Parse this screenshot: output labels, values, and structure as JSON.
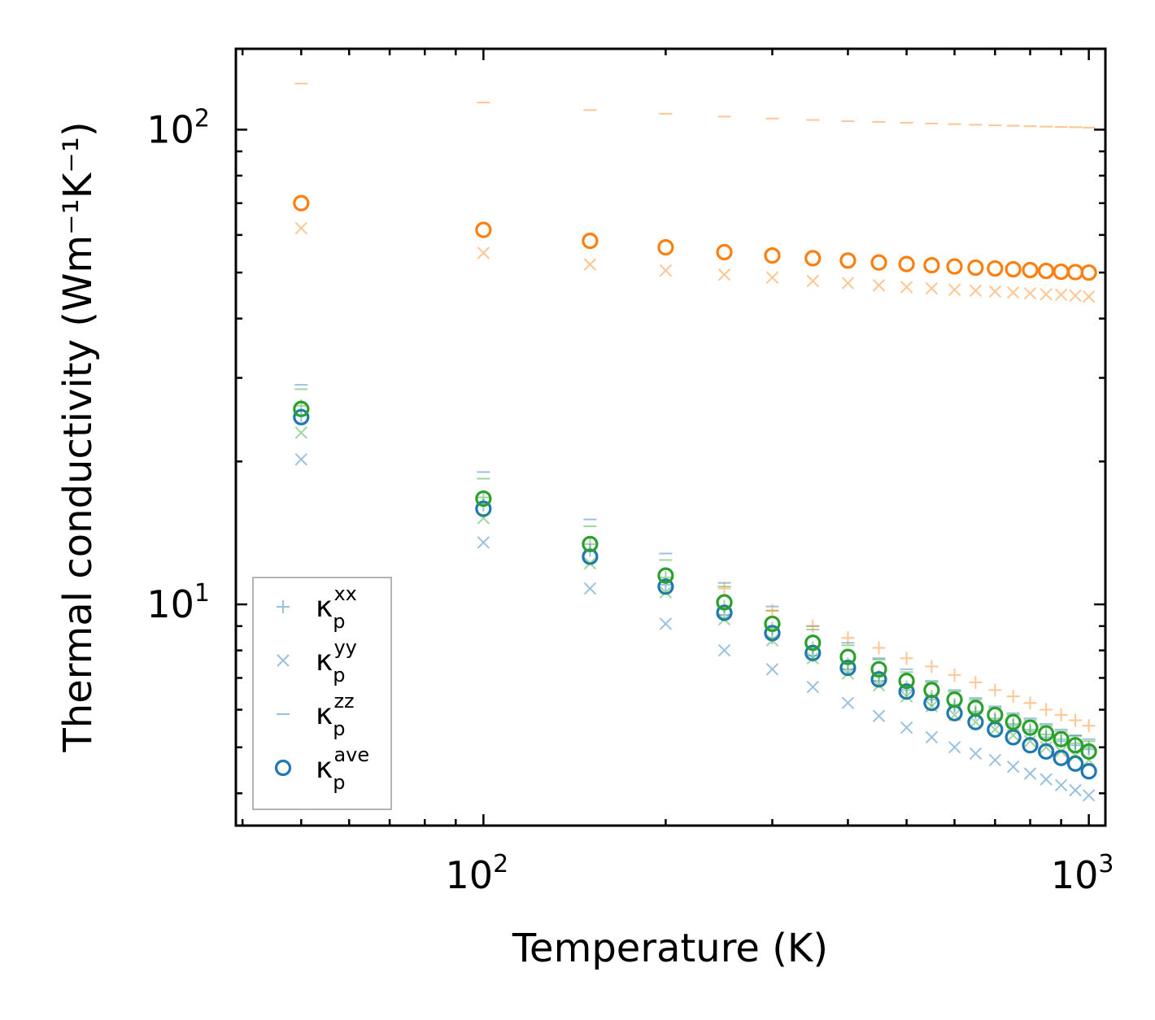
{
  "chart_data": {
    "type": "scatter",
    "title": "",
    "xlabel": "Temperature (K)",
    "ylabel": "Thermal conductivity (Wm⁻¹K⁻¹)",
    "xscale": "log",
    "yscale": "log",
    "xlim": [
      39,
      1065
    ],
    "ylim": [
      3.42,
      148
    ],
    "x_ticks": [
      {
        "value": 100,
        "base": "10",
        "exp": "2"
      },
      {
        "value": 1000,
        "base": "10",
        "exp": "3"
      }
    ],
    "y_ticks": [
      {
        "value": 10,
        "base": "10",
        "exp": "1"
      },
      {
        "value": 100,
        "base": "10",
        "exp": "2"
      }
    ],
    "grid": false,
    "legend_position": "lower-left",
    "colors": {
      "blue": "#1f77b4",
      "orange": "#ff7f0e",
      "green": "#2ca02c",
      "light_blue": "#1f77b4",
      "light_orange": "#ff7f0e",
      "light_green": "#2ca02c"
    },
    "x": [
      50,
      100,
      150,
      200,
      250,
      300,
      350,
      400,
      450,
      500,
      550,
      600,
      650,
      700,
      750,
      800,
      850,
      900,
      950,
      1000
    ],
    "series": [
      {
        "name": "blue kxx",
        "marker": "plus",
        "color": "#1f77b4",
        "alpha": 0.45,
        "values": [
          25.0,
          16.2,
          13.0,
          11.0,
          9.5,
          8.5,
          7.8,
          7.3,
          6.9,
          6.6,
          6.3,
          6.1,
          5.9,
          5.7,
          5.55,
          5.4,
          5.25,
          5.15,
          5.05,
          4.95
        ]
      },
      {
        "name": "blue kyy",
        "marker": "x",
        "color": "#1f77b4",
        "alpha": 0.45,
        "values": [
          20.2,
          13.5,
          10.8,
          9.1,
          8.0,
          7.3,
          6.7,
          6.2,
          5.82,
          5.5,
          5.25,
          5.0,
          4.85,
          4.7,
          4.55,
          4.4,
          4.28,
          4.16,
          4.06,
          3.96
        ]
      },
      {
        "name": "blue kzz",
        "marker": "dash",
        "color": "#1f77b4",
        "alpha": 0.45,
        "values": [
          29.0,
          19.0,
          15.1,
          12.8,
          11.1,
          9.9,
          9.0,
          8.3,
          7.7,
          7.3,
          6.9,
          6.6,
          6.35,
          6.1,
          5.9,
          5.75,
          5.6,
          5.45,
          5.3,
          5.2
        ]
      },
      {
        "name": "blue ave",
        "marker": "circle",
        "color": "#1f77b4",
        "alpha": 1.0,
        "values": [
          24.8,
          15.9,
          12.6,
          10.9,
          9.6,
          8.7,
          7.9,
          7.35,
          6.95,
          6.55,
          6.2,
          5.9,
          5.65,
          5.45,
          5.25,
          5.05,
          4.9,
          4.75,
          4.62,
          4.45
        ]
      },
      {
        "name": "green kxx",
        "marker": "plus",
        "color": "#2ca02c",
        "alpha": 0.45,
        "values": [
          26.2,
          16.8,
          13.4,
          11.4,
          9.9,
          8.9,
          8.1,
          7.5,
          7.05,
          6.7,
          6.4,
          6.15,
          5.95,
          5.75,
          5.6,
          5.45,
          5.32,
          5.2,
          5.1,
          5.0
        ]
      },
      {
        "name": "green kyy",
        "marker": "x",
        "color": "#2ca02c",
        "alpha": 0.45,
        "values": [
          23.0,
          15.2,
          12.2,
          10.6,
          9.3,
          8.4,
          7.7,
          7.15,
          6.75,
          6.4,
          6.1,
          5.85,
          5.65,
          5.45,
          5.3,
          5.15,
          5.0,
          4.9,
          4.8,
          4.7
        ]
      },
      {
        "name": "green kzz",
        "marker": "dash",
        "color": "#2ca02c",
        "alpha": 0.45,
        "values": [
          28.4,
          18.4,
          14.6,
          12.4,
          10.9,
          9.7,
          8.85,
          8.2,
          7.65,
          7.2,
          6.85,
          6.55,
          6.3,
          6.05,
          5.85,
          5.7,
          5.55,
          5.4,
          5.28,
          5.15
        ]
      },
      {
        "name": "green ave",
        "marker": "circle",
        "color": "#2ca02c",
        "alpha": 1.0,
        "values": [
          25.8,
          16.7,
          13.4,
          11.5,
          10.1,
          9.1,
          8.3,
          7.75,
          7.3,
          6.9,
          6.6,
          6.3,
          6.05,
          5.85,
          5.65,
          5.5,
          5.35,
          5.2,
          5.05,
          4.9
        ]
      },
      {
        "name": "orange kxx",
        "marker": "plus",
        "color": "#ff7f0e",
        "alpha": 0.45,
        "values": [
          null,
          null,
          null,
          null,
          10.8,
          9.7,
          9.0,
          8.5,
          8.1,
          7.7,
          7.4,
          7.1,
          6.85,
          6.6,
          6.4,
          6.2,
          6.0,
          5.85,
          5.7,
          5.55
        ]
      },
      {
        "name": "orange kyy",
        "marker": "x",
        "color": "#ff7f0e",
        "alpha": 0.45,
        "values": [
          62.0,
          55.0,
          52.0,
          50.5,
          49.5,
          48.8,
          48.0,
          47.5,
          47.0,
          46.6,
          46.3,
          46.0,
          45.8,
          45.6,
          45.4,
          45.2,
          45.0,
          44.9,
          44.7,
          44.5
        ]
      },
      {
        "name": "orange kzz",
        "marker": "dash",
        "color": "#ff7f0e",
        "alpha": 0.45,
        "values": [
          125.0,
          114.0,
          110.0,
          108.0,
          106.5,
          105.5,
          104.8,
          104.2,
          103.8,
          103.4,
          103.0,
          102.7,
          102.4,
          102.1,
          101.9,
          101.7,
          101.5,
          101.3,
          101.2,
          101.0
        ]
      },
      {
        "name": "orange ave",
        "marker": "circle",
        "color": "#ff7f0e",
        "alpha": 1.0,
        "values": [
          70.0,
          61.5,
          58.3,
          56.5,
          55.2,
          54.3,
          53.6,
          53.0,
          52.5,
          52.1,
          51.8,
          51.5,
          51.2,
          51.0,
          50.8,
          50.6,
          50.4,
          50.2,
          50.1,
          50.0
        ]
      }
    ],
    "legend": [
      {
        "marker": "plus",
        "base": "κ",
        "sub": "p",
        "sup": "xx"
      },
      {
        "marker": "x",
        "base": "κ",
        "sub": "p",
        "sup": "yy"
      },
      {
        "marker": "dash",
        "base": "κ",
        "sub": "p",
        "sup": "zz"
      },
      {
        "marker": "circle",
        "base": "κ",
        "sub": "p",
        "sup": "ave"
      }
    ]
  }
}
